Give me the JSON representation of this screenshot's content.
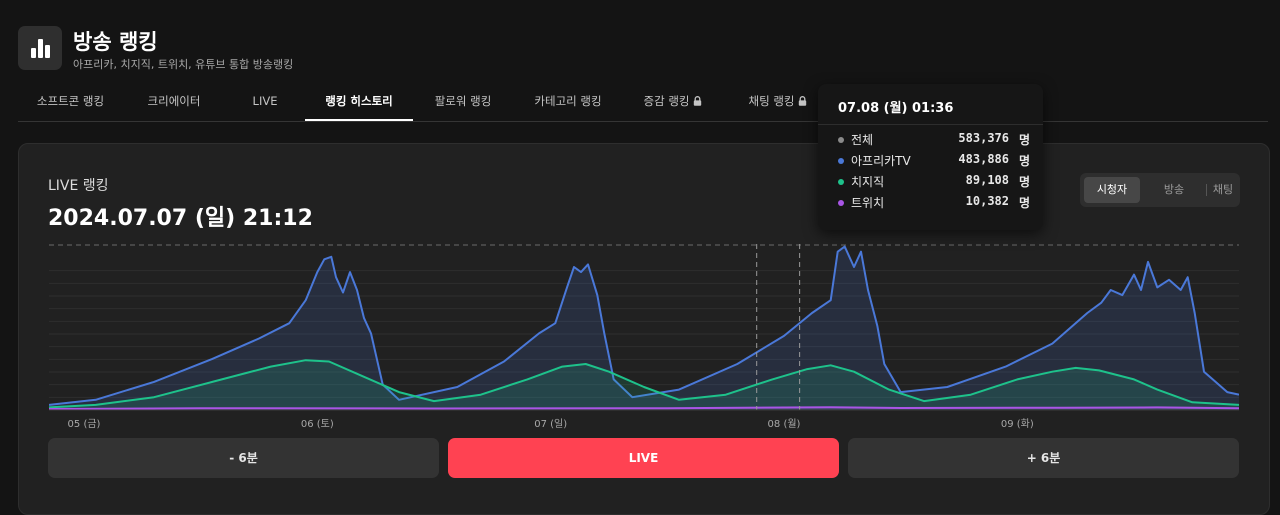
{
  "app": {
    "title": "방송 랭킹",
    "subtitle": "아프리카, 치지직, 트위치, 유튜브 통합 방송랭킹"
  },
  "tabs": [
    {
      "label": "소프트콘 랭킹",
      "active": false,
      "locked": false
    },
    {
      "label": "크리에이터",
      "active": false,
      "locked": false
    },
    {
      "label": "LIVE",
      "active": false,
      "locked": false
    },
    {
      "label": "랭킹 히스토리",
      "active": true,
      "locked": false
    },
    {
      "label": "팔로워 랭킹",
      "active": false,
      "locked": false
    },
    {
      "label": "카테고리 랭킹",
      "active": false,
      "locked": false
    },
    {
      "label": "증감 랭킹",
      "active": false,
      "locked": true
    },
    {
      "label": "채팅 랭킹",
      "active": false,
      "locked": true
    }
  ],
  "card": {
    "label": "LIVE 랭킹",
    "datetime": "2024.07.07 (일) 21:12"
  },
  "toggle": {
    "options": [
      "시청자",
      "방송",
      "채팅"
    ],
    "selected": "시청자"
  },
  "nav": {
    "prev": "- 6분",
    "live": "LIVE",
    "next": "+ 6분"
  },
  "tooltip": {
    "time": "07.08 (월) 01:36",
    "unit": "명",
    "rows": [
      {
        "name": "전체",
        "value": "583,376",
        "color": "#8a8a8a"
      },
      {
        "name": "아프리카TV",
        "value": "483,886",
        "color": "#4a78d8"
      },
      {
        "name": "치지직",
        "value": "89,108",
        "color": "#1ec28b"
      },
      {
        "name": "트위치",
        "value": "10,382",
        "color": "#a955e6"
      }
    ]
  },
  "chart_data": {
    "type": "area",
    "x_tick_labels": [
      "05 (금)",
      "06 (토)",
      "07 (일)",
      "08 (월)",
      "09 (화)"
    ],
    "x_days": [
      4.85,
      9.95
    ],
    "y_range": [
      0,
      650000
    ],
    "grid": true,
    "legend": "none",
    "hover_x": 8.067,
    "current_x": 7.883,
    "series": [
      {
        "name": "아프리카TV",
        "color": "#4a78d8",
        "points": [
          [
            4.85,
            20000
          ],
          [
            5.05,
            40000
          ],
          [
            5.3,
            110000
          ],
          [
            5.55,
            200000
          ],
          [
            5.75,
            280000
          ],
          [
            5.88,
            340000
          ],
          [
            5.95,
            430000
          ],
          [
            6.0,
            540000
          ],
          [
            6.03,
            590000
          ],
          [
            6.06,
            600000
          ],
          [
            6.08,
            520000
          ],
          [
            6.11,
            460000
          ],
          [
            6.14,
            540000
          ],
          [
            6.17,
            470000
          ],
          [
            6.2,
            360000
          ],
          [
            6.23,
            300000
          ],
          [
            6.28,
            100000
          ],
          [
            6.35,
            40000
          ],
          [
            6.6,
            90000
          ],
          [
            6.8,
            190000
          ],
          [
            6.95,
            300000
          ],
          [
            7.02,
            340000
          ],
          [
            7.07,
            480000
          ],
          [
            7.1,
            560000
          ],
          [
            7.13,
            540000
          ],
          [
            7.16,
            570000
          ],
          [
            7.2,
            450000
          ],
          [
            7.23,
            300000
          ],
          [
            7.27,
            120000
          ],
          [
            7.35,
            50000
          ],
          [
            7.55,
            80000
          ],
          [
            7.8,
            180000
          ],
          [
            8.0,
            290000
          ],
          [
            8.12,
            380000
          ],
          [
            8.2,
            430000
          ],
          [
            8.23,
            620000
          ],
          [
            8.26,
            640000
          ],
          [
            8.3,
            560000
          ],
          [
            8.33,
            620000
          ],
          [
            8.36,
            470000
          ],
          [
            8.4,
            330000
          ],
          [
            8.43,
            180000
          ],
          [
            8.5,
            70000
          ],
          [
            8.7,
            90000
          ],
          [
            8.95,
            170000
          ],
          [
            9.15,
            260000
          ],
          [
            9.3,
            380000
          ],
          [
            9.36,
            420000
          ],
          [
            9.4,
            470000
          ],
          [
            9.45,
            450000
          ],
          [
            9.5,
            530000
          ],
          [
            9.53,
            470000
          ],
          [
            9.56,
            580000
          ],
          [
            9.6,
            480000
          ],
          [
            9.65,
            510000
          ],
          [
            9.7,
            470000
          ],
          [
            9.73,
            520000
          ],
          [
            9.76,
            380000
          ],
          [
            9.8,
            150000
          ],
          [
            9.9,
            70000
          ],
          [
            9.95,
            60000
          ]
        ]
      },
      {
        "name": "치지직",
        "color": "#1ec28b",
        "points": [
          [
            4.85,
            10000
          ],
          [
            5.05,
            20000
          ],
          [
            5.3,
            50000
          ],
          [
            5.55,
            110000
          ],
          [
            5.8,
            170000
          ],
          [
            5.95,
            195000
          ],
          [
            6.05,
            190000
          ],
          [
            6.2,
            130000
          ],
          [
            6.35,
            70000
          ],
          [
            6.5,
            35000
          ],
          [
            6.7,
            60000
          ],
          [
            6.9,
            120000
          ],
          [
            7.05,
            170000
          ],
          [
            7.15,
            180000
          ],
          [
            7.25,
            150000
          ],
          [
            7.4,
            90000
          ],
          [
            7.55,
            40000
          ],
          [
            7.75,
            60000
          ],
          [
            7.95,
            120000
          ],
          [
            8.1,
            160000
          ],
          [
            8.2,
            175000
          ],
          [
            8.3,
            150000
          ],
          [
            8.45,
            80000
          ],
          [
            8.6,
            35000
          ],
          [
            8.8,
            60000
          ],
          [
            9.0,
            120000
          ],
          [
            9.15,
            150000
          ],
          [
            9.25,
            165000
          ],
          [
            9.35,
            155000
          ],
          [
            9.5,
            120000
          ],
          [
            9.6,
            80000
          ],
          [
            9.75,
            30000
          ],
          [
            9.95,
            20000
          ]
        ]
      },
      {
        "name": "트위치",
        "color": "#a955e6",
        "points": [
          [
            4.85,
            4000
          ],
          [
            5.5,
            7000
          ],
          [
            6.5,
            6000
          ],
          [
            7.5,
            7000
          ],
          [
            8.2,
            11000
          ],
          [
            8.5,
            8000
          ],
          [
            9.2,
            9000
          ],
          [
            9.6,
            10000
          ],
          [
            9.95,
            7000
          ]
        ]
      }
    ]
  }
}
